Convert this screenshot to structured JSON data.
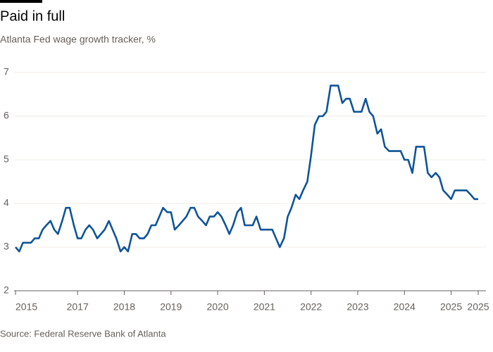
{
  "chart_data": {
    "type": "line",
    "title": "Paid in full",
    "subtitle": "Atlanta Fed wage growth tracker, %",
    "source": "Source: Federal Reserve Bank of Atlanta",
    "x": [
      2015.67,
      2015.75,
      2015.83,
      2015.92,
      2016.0,
      2016.08,
      2016.17,
      2016.25,
      2016.33,
      2016.42,
      2016.5,
      2016.58,
      2016.67,
      2016.75,
      2016.83,
      2016.92,
      2017.0,
      2017.08,
      2017.17,
      2017.25,
      2017.33,
      2017.42,
      2017.5,
      2017.58,
      2017.67,
      2017.75,
      2017.83,
      2017.92,
      2018.0,
      2018.08,
      2018.17,
      2018.25,
      2018.33,
      2018.42,
      2018.5,
      2018.58,
      2018.67,
      2018.75,
      2018.83,
      2018.92,
      2019.0,
      2019.08,
      2019.17,
      2019.25,
      2019.33,
      2019.42,
      2019.5,
      2019.58,
      2019.67,
      2019.75,
      2019.83,
      2019.92,
      2020.0,
      2020.08,
      2020.17,
      2020.25,
      2020.33,
      2020.42,
      2020.5,
      2020.58,
      2020.67,
      2020.75,
      2020.83,
      2020.92,
      2021.0,
      2021.08,
      2021.17,
      2021.25,
      2021.33,
      2021.42,
      2021.5,
      2021.58,
      2021.67,
      2021.75,
      2021.83,
      2021.92,
      2022.0,
      2022.08,
      2022.17,
      2022.25,
      2022.33,
      2022.42,
      2022.5,
      2022.58,
      2022.67,
      2022.75,
      2022.83,
      2022.92,
      2023.0,
      2023.08,
      2023.17,
      2023.25,
      2023.33,
      2023.42,
      2023.5,
      2023.58,
      2023.67,
      2023.75,
      2023.83,
      2023.92,
      2024.0,
      2024.08,
      2024.17,
      2024.25,
      2024.33,
      2024.42,
      2024.5,
      2024.58,
      2024.67,
      2024.75,
      2024.83,
      2024.92,
      2025.0,
      2025.08,
      2025.17,
      2025.25,
      2025.33,
      2025.42,
      2025.5,
      2025.58
    ],
    "series": [
      {
        "color": "#0f5499",
        "values": [
          3.0,
          2.9,
          3.1,
          3.1,
          3.1,
          3.2,
          3.2,
          3.4,
          3.5,
          3.6,
          3.4,
          3.3,
          3.6,
          3.9,
          3.9,
          3.5,
          3.2,
          3.2,
          3.4,
          3.5,
          3.4,
          3.2,
          3.3,
          3.4,
          3.6,
          3.4,
          3.2,
          2.9,
          3.0,
          2.9,
          3.3,
          3.3,
          3.2,
          3.2,
          3.3,
          3.5,
          3.5,
          3.7,
          3.9,
          3.8,
          3.8,
          3.4,
          3.5,
          3.6,
          3.7,
          3.9,
          3.9,
          3.7,
          3.6,
          3.5,
          3.7,
          3.7,
          3.8,
          3.7,
          3.5,
          3.3,
          3.5,
          3.8,
          3.9,
          3.5,
          3.5,
          3.5,
          3.7,
          3.4,
          3.4,
          3.4,
          3.4,
          3.2,
          3.0,
          3.2,
          3.7,
          3.9,
          4.2,
          4.1,
          4.3,
          4.5,
          5.1,
          5.8,
          6.0,
          6.0,
          6.1,
          6.7,
          6.7,
          6.7,
          6.3,
          6.4,
          6.4,
          6.1,
          6.1,
          6.1,
          6.4,
          6.1,
          6.0,
          5.6,
          5.7,
          5.3,
          5.2,
          5.2,
          5.2,
          5.2,
          5.0,
          5.0,
          4.7,
          5.3,
          5.3,
          5.3,
          4.7,
          4.6,
          4.7,
          4.6,
          4.3,
          4.2,
          4.1,
          4.3,
          4.3,
          4.3,
          4.3,
          4.2,
          4.1,
          4.1
        ]
      }
    ],
    "xlim": [
      2015.67,
      2025.58
    ],
    "xticks": [
      {
        "value": 2015.67,
        "label": "2015"
      },
      2017,
      2018,
      2019,
      2020,
      2021,
      2022,
      2023,
      2024,
      2025,
      {
        "value": 2025.58,
        "label": "2025"
      }
    ],
    "ylim": [
      2,
      7
    ],
    "yticks": [
      2,
      3,
      4,
      5,
      6,
      7
    ],
    "grid": true
  }
}
